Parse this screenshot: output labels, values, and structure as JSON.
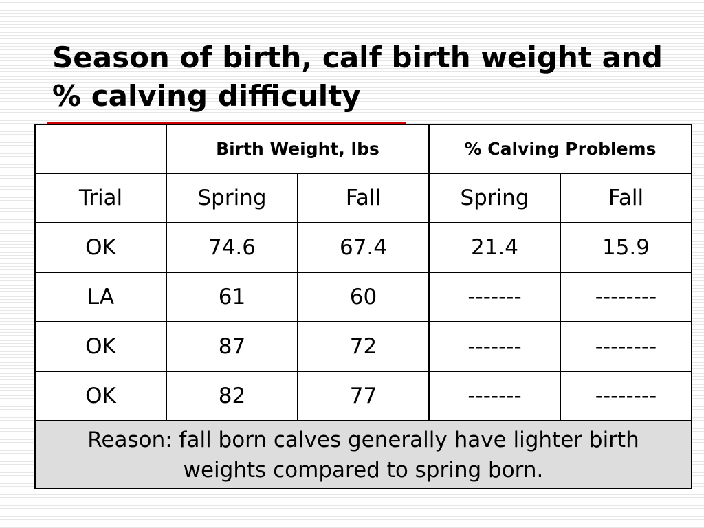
{
  "title": "Season of birth, calf birth weight and % calving difficulty",
  "table": {
    "groups": [
      "Birth Weight, lbs",
      "% Calving Problems"
    ],
    "columns": [
      "Trial",
      "Spring",
      "Fall",
      "Spring",
      "Fall"
    ],
    "rows": [
      [
        "OK",
        "74.6",
        "67.4",
        "21.4",
        "15.9"
      ],
      [
        "LA",
        "61",
        "60",
        "-------",
        "--------"
      ],
      [
        "OK",
        "87",
        "72",
        "-------",
        "--------"
      ],
      [
        "OK",
        "82",
        "77",
        "-------",
        "--------"
      ]
    ],
    "note": "Reason: fall born calves generally have lighter birth weights compared to spring born."
  }
}
